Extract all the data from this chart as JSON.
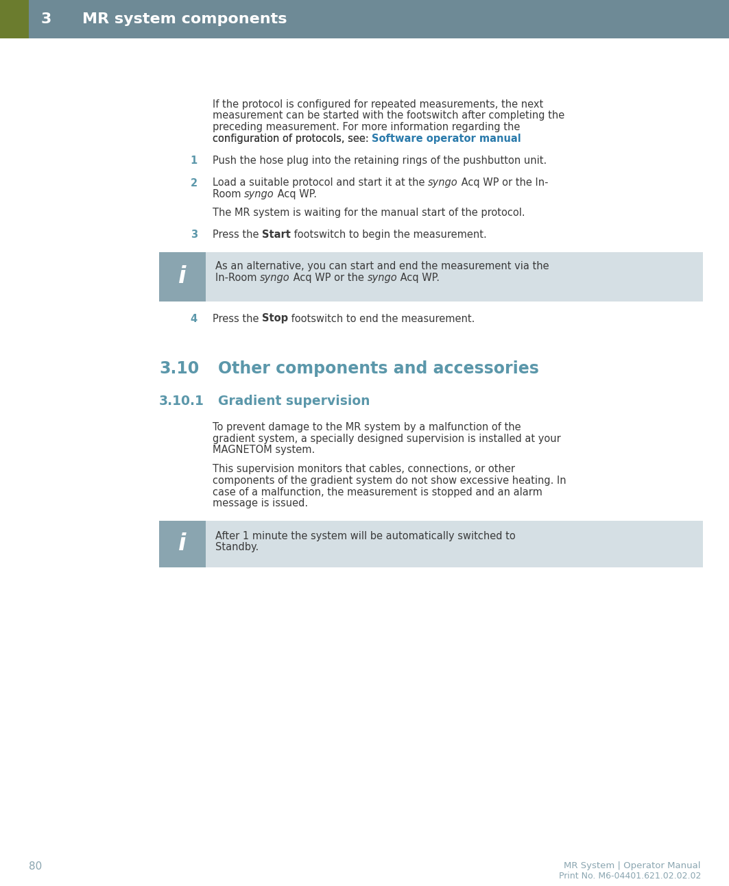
{
  "page_bg": "#ffffff",
  "header_bg": "#6e8a96",
  "header_accent_bg": "#6b7c2e",
  "header_text_num": "3",
  "header_text_title": "MR system components",
  "header_text_color": "#ffffff",
  "body_text_color": "#3a3a3a",
  "link_color": "#2a7aab",
  "section_color": "#5b97aa",
  "info_box_bg": "#d5dfe4",
  "info_icon_bg": "#8aa5b0",
  "footer_page_num": "80",
  "footer_text_color": "#8aa5b0",
  "footer_right_line1": "MR System | Operator Manual",
  "footer_right_line2": "Print No. M6-04401.621.02.02.02",
  "intro_lines": [
    "If the protocol is configured for repeated measurements, the next",
    "measurement can be started with the footswitch after completing the",
    "preceding measurement. For more information regarding the",
    "configuration of protocols, see: "
  ],
  "intro_link": "Software operator manual",
  "step1": "Push the hose plug into the retaining rings of the pushbutton unit.",
  "step2_part1": "Load a suitable protocol and start it at the ",
  "step2_italic1": "syngo",
  "step2_part2": " Acq WP or the In-",
  "step2_part3": "Room ",
  "step2_italic2": "syngo",
  "step2_part4": " Acq WP.",
  "step2_sub": "The MR system is waiting for the manual start of the protocol.",
  "step3_pre": "Press the ",
  "step3_bold": "Start",
  "step3_post": " footswitch to begin the measurement.",
  "info1_line1": "As an alternative, you can start and end the measurement via the",
  "info1_part1": "In-Room ",
  "info1_italic1": "syngo",
  "info1_part2": " Acq WP or the ",
  "info1_italic2": "syngo",
  "info1_part3": " Acq WP.",
  "step4_pre": "Press the ",
  "step4_bold": "Stop",
  "step4_post": " footswitch to end the measurement.",
  "section310_num": "3.10",
  "section310_title": "Other components and accessories",
  "section3101_num": "3.10.1",
  "section3101_title": "Gradient supervision",
  "body_para1_lines": [
    "To prevent damage to the MR system by a malfunction of the",
    "gradient system, a specially designed supervision is installed at your",
    "MAGNETOM system."
  ],
  "body_para2_lines": [
    "This supervision monitors that cables, connections, or other",
    "components of the gradient system do not show excessive heating. In",
    "case of a malfunction, the measurement is stopped and an alarm",
    "message is issued."
  ],
  "info2_line1": "After 1 minute the system will be automatically switched to",
  "info2_line2": "Standby."
}
